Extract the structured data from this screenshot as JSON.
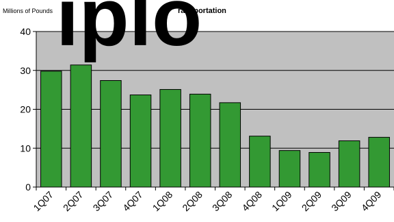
{
  "chart_data": {
    "type": "bar",
    "title": "ransportation",
    "ylabel": "Millions of Pounds",
    "watermark": "iplo",
    "categories": [
      "1Q07",
      "2Q07",
      "3Q07",
      "4Q07",
      "1Q08",
      "2Q08",
      "3Q08",
      "4Q08",
      "1Q09",
      "2Q09",
      "3Q09",
      "4Q09"
    ],
    "values": [
      29.8,
      31.4,
      27.4,
      23.7,
      25.1,
      23.9,
      21.7,
      13.1,
      9.4,
      8.9,
      11.9,
      12.8
    ],
    "ylim": [
      0,
      40
    ],
    "yticks": [
      "0",
      "10",
      "20",
      "30",
      "40"
    ],
    "grid": true,
    "colors": {
      "bar": "#339933",
      "plot_background": "#c0c0c0",
      "gridline": "#000000",
      "bar_outline": "#000000"
    }
  }
}
